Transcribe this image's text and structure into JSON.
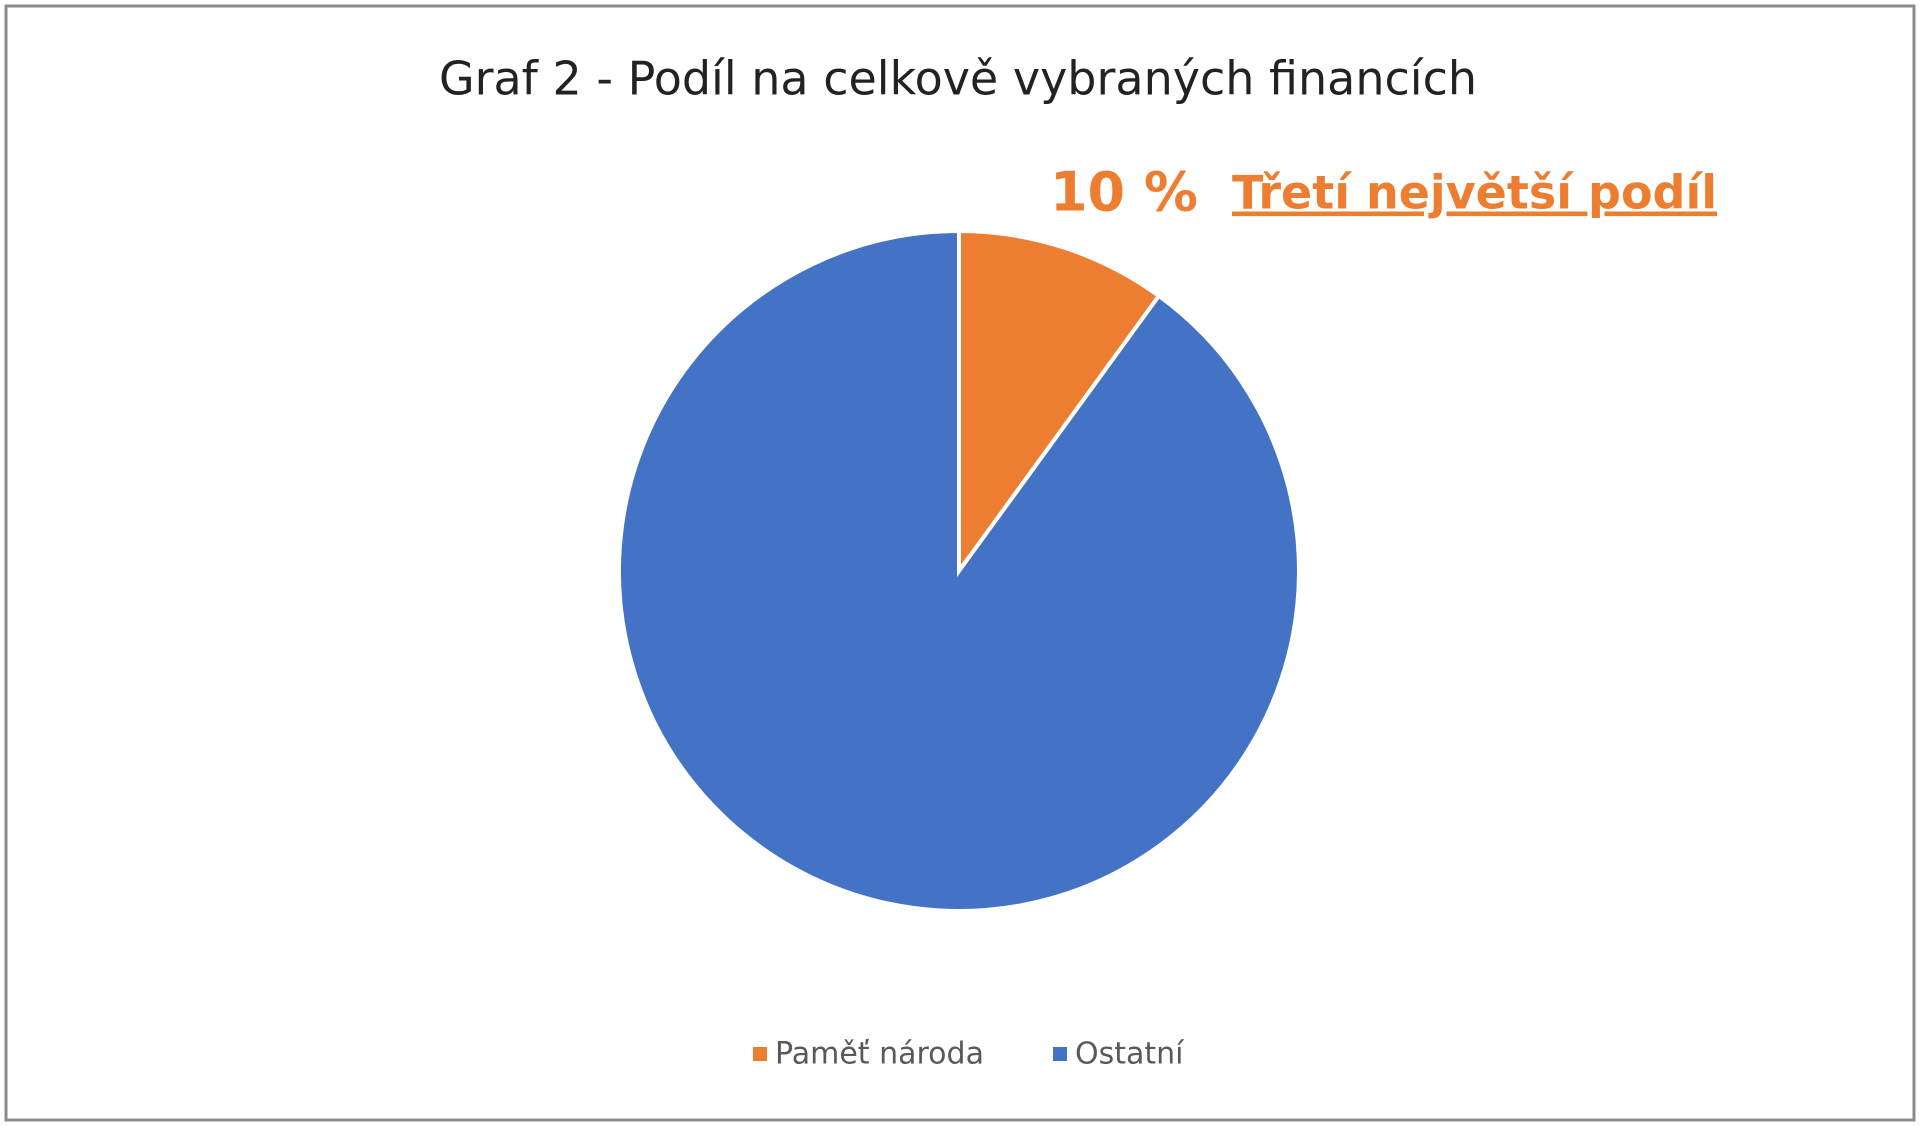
{
  "chart_data": {
    "type": "pie",
    "title": "Graf 2 - Podíl na celkově vybraných financích",
    "categories": [
      "Paměť národa",
      "Ostatní"
    ],
    "values": [
      10,
      90
    ],
    "value_labels": [
      "10 %",
      null
    ],
    "colors": [
      "#ed7d31",
      "#4472c4"
    ],
    "annotation": "Třetí největší podíl",
    "legend": "bottom"
  }
}
